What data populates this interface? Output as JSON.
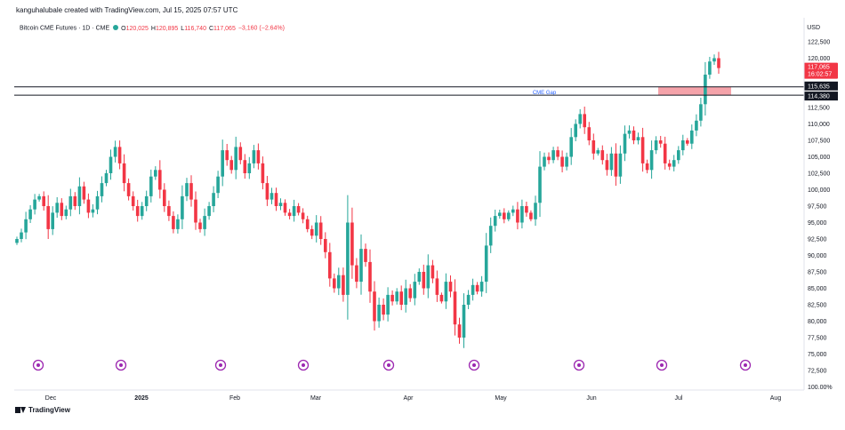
{
  "header": {
    "created_by": "kanguhalubale created with TradingView.com, Jul 15, 2025 07:57 UTC"
  },
  "symbol": {
    "name": "Bitcoin CME Futures · 1D · CME",
    "open_label": "O",
    "open": "120,025",
    "high_label": "H",
    "high": "120,895",
    "low_label": "L",
    "low": "116,740",
    "close_label": "C",
    "close": "117,065",
    "change": "−3,160 (−2.64%)"
  },
  "currency": "USD",
  "price_axis": {
    "ticks": [
      "122,500",
      "120,000",
      "112,500",
      "110,000",
      "107,500",
      "105,000",
      "102,500",
      "100,000",
      "97,500",
      "95,000",
      "92,500",
      "90,000",
      "87,500",
      "85,000",
      "82,500",
      "80,000",
      "77,500",
      "75,000",
      "72,500",
      "100.00%"
    ],
    "tick_values": [
      122500,
      120000,
      112500,
      110000,
      107500,
      105000,
      102500,
      100000,
      97500,
      95000,
      92500,
      90000,
      87500,
      85000,
      82500,
      80000,
      77500,
      75000,
      72500,
      70000
    ],
    "price_label": "117,065",
    "countdown_label": "16:02:57",
    "level_labels": [
      "115,635",
      "114,380"
    ]
  },
  "time_axis": {
    "labels": [
      "Dec",
      "2025",
      "Feb",
      "Mar",
      "Apr",
      "May",
      "Jun",
      "Jul",
      "Aug"
    ],
    "bold_label": "2025"
  },
  "event_markers": 9,
  "colors": {
    "up": "#26a69a",
    "down": "#f23645",
    "gap_fill": "#f5a3aa",
    "gap_text": "#2962ff",
    "line": "#131722",
    "marker": "#9c27b0"
  },
  "chart_data": {
    "type": "candlestick",
    "ylim": [
      70000,
      124000
    ],
    "gap_zone": {
      "label": "CME Gap",
      "low": 114380,
      "high": 115635
    },
    "close_series": [
      92500,
      93500,
      95500,
      97000,
      98500,
      99000,
      97500,
      94000,
      96500,
      98000,
      96000,
      97000,
      99000,
      97500,
      100500,
      98500,
      96500,
      97000,
      99000,
      101000,
      102500,
      105000,
      106500,
      104000,
      101000,
      99000,
      97500,
      96000,
      97500,
      99000,
      102000,
      103000,
      100000,
      97500,
      96000,
      94000,
      95500,
      99000,
      101000,
      98500,
      95000,
      94000,
      96000,
      97500,
      99500,
      102000,
      106000,
      104500,
      103000,
      106500,
      104500,
      102500,
      104000,
      106000,
      104000,
      101000,
      98500,
      99500,
      97500,
      98000,
      96500,
      96000,
      97500,
      96500,
      95500,
      94000,
      93000,
      95000,
      92500,
      90500,
      86500,
      85000,
      87000,
      84000,
      95000,
      88500,
      86000,
      91000,
      89000,
      84500,
      80000,
      82500,
      81000,
      84000,
      83000,
      84500,
      82500,
      85000,
      83500,
      86000,
      87500,
      85000,
      88500,
      86500,
      84000,
      83000,
      86000,
      84500,
      79500,
      77500,
      82500,
      84000,
      85500,
      84500,
      86000,
      91500,
      94500,
      96000,
      96500,
      95500,
      96500,
      97000,
      95000,
      97500,
      96500,
      95500,
      98000,
      103500,
      105000,
      104500,
      106000,
      105000,
      103500,
      105000,
      108000,
      110000,
      111500,
      109500,
      107500,
      105500,
      106000,
      104500,
      103000,
      105500,
      102000,
      105500,
      108500,
      109000,
      107500,
      108000,
      104000,
      103000,
      106000,
      107500,
      107000,
      104000,
      103500,
      104500,
      106000,
      107500,
      107000,
      109000,
      110500,
      113000,
      117500,
      119500,
      120000,
      118500
    ]
  }
}
